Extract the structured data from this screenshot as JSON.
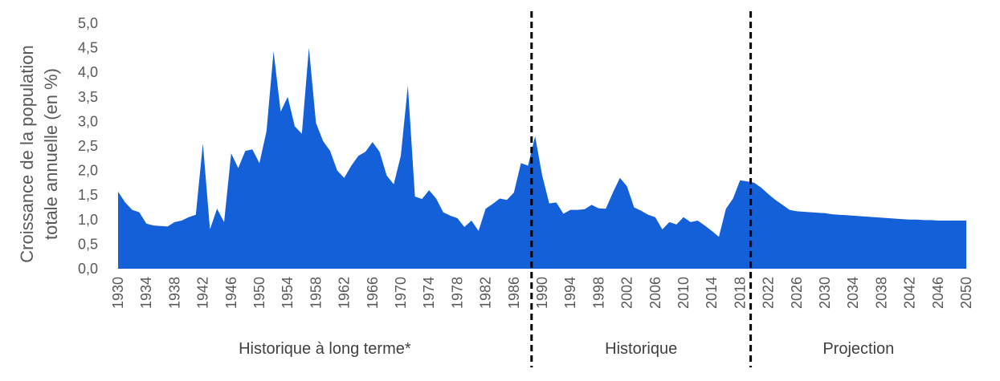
{
  "chart_data": {
    "type": "area",
    "ylabel_lines": [
      "Croissance de la population",
      "totale annuelle (en %)"
    ],
    "xlim": [
      1930,
      2050
    ],
    "ylim": [
      0,
      5
    ],
    "grid": false,
    "color": "#1460D8",
    "y_ticks": [
      "0,0",
      "0,5",
      "1,0",
      "1,5",
      "2,0",
      "2,5",
      "3,0",
      "3,5",
      "4,0",
      "4,5",
      "5,0"
    ],
    "x_ticks": [
      "1930",
      "1934",
      "1938",
      "1942",
      "1946",
      "1950",
      "1954",
      "1958",
      "1962",
      "1966",
      "1970",
      "1974",
      "1978",
      "1982",
      "1986",
      "1990",
      "1994",
      "1998",
      "2002",
      "2006",
      "2010",
      "2014",
      "2018",
      "2022",
      "2026",
      "2030",
      "2034",
      "2038",
      "2042",
      "2046",
      "2050"
    ],
    "dividers": [
      1988.5,
      2019.5
    ],
    "periods": [
      "Historique à long terme*",
      "Historique",
      "Projection"
    ],
    "x": [
      1930,
      1931,
      1932,
      1933,
      1934,
      1935,
      1936,
      1937,
      1938,
      1939,
      1940,
      1941,
      1942,
      1943,
      1944,
      1945,
      1946,
      1947,
      1948,
      1949,
      1950,
      1951,
      1952,
      1953,
      1954,
      1955,
      1956,
      1957,
      1958,
      1959,
      1960,
      1961,
      1962,
      1963,
      1964,
      1965,
      1966,
      1967,
      1968,
      1969,
      1970,
      1971,
      1972,
      1973,
      1974,
      1975,
      1976,
      1977,
      1978,
      1979,
      1980,
      1981,
      1982,
      1983,
      1984,
      1985,
      1986,
      1987,
      1988,
      1989,
      1990,
      1991,
      1992,
      1993,
      1994,
      1995,
      1996,
      1997,
      1998,
      1999,
      2000,
      2001,
      2002,
      2003,
      2004,
      2005,
      2006,
      2007,
      2008,
      2009,
      2010,
      2011,
      2012,
      2013,
      2014,
      2015,
      2016,
      2017,
      2018,
      2019,
      2020,
      2021,
      2022,
      2023,
      2024,
      2025,
      2026,
      2027,
      2028,
      2029,
      2030,
      2031,
      2032,
      2033,
      2034,
      2035,
      2036,
      2037,
      2038,
      2039,
      2040,
      2041,
      2042,
      2043,
      2044,
      2045,
      2046,
      2047,
      2048,
      2049,
      2050
    ],
    "values": [
      1.57,
      1.35,
      1.2,
      1.15,
      0.92,
      0.88,
      0.87,
      0.86,
      0.95,
      0.98,
      1.05,
      1.1,
      2.55,
      0.8,
      1.22,
      0.95,
      2.35,
      2.05,
      2.4,
      2.43,
      2.15,
      2.8,
      4.43,
      3.2,
      3.5,
      2.9,
      2.75,
      4.5,
      2.97,
      2.6,
      2.4,
      2.0,
      1.85,
      2.1,
      2.3,
      2.38,
      2.58,
      2.38,
      1.9,
      1.72,
      2.3,
      3.73,
      1.47,
      1.42,
      1.6,
      1.43,
      1.15,
      1.08,
      1.03,
      0.85,
      0.98,
      0.77,
      1.22,
      1.32,
      1.43,
      1.4,
      1.55,
      2.15,
      2.1,
      2.7,
      1.9,
      1.33,
      1.35,
      1.12,
      1.2,
      1.2,
      1.21,
      1.3,
      1.23,
      1.22,
      1.55,
      1.85,
      1.68,
      1.25,
      1.18,
      1.1,
      1.05,
      0.8,
      0.95,
      0.9,
      1.05,
      0.95,
      0.98,
      0.88,
      0.77,
      0.65,
      1.22,
      1.43,
      1.8,
      1.78,
      1.75,
      1.65,
      1.52,
      1.4,
      1.3,
      1.2,
      1.17,
      1.16,
      1.15,
      1.14,
      1.13,
      1.11,
      1.1,
      1.09,
      1.08,
      1.07,
      1.06,
      1.05,
      1.04,
      1.03,
      1.02,
      1.01,
      1.0,
      1.0,
      0.99,
      0.99,
      0.98,
      0.98,
      0.98,
      0.98,
      0.98
    ]
  }
}
